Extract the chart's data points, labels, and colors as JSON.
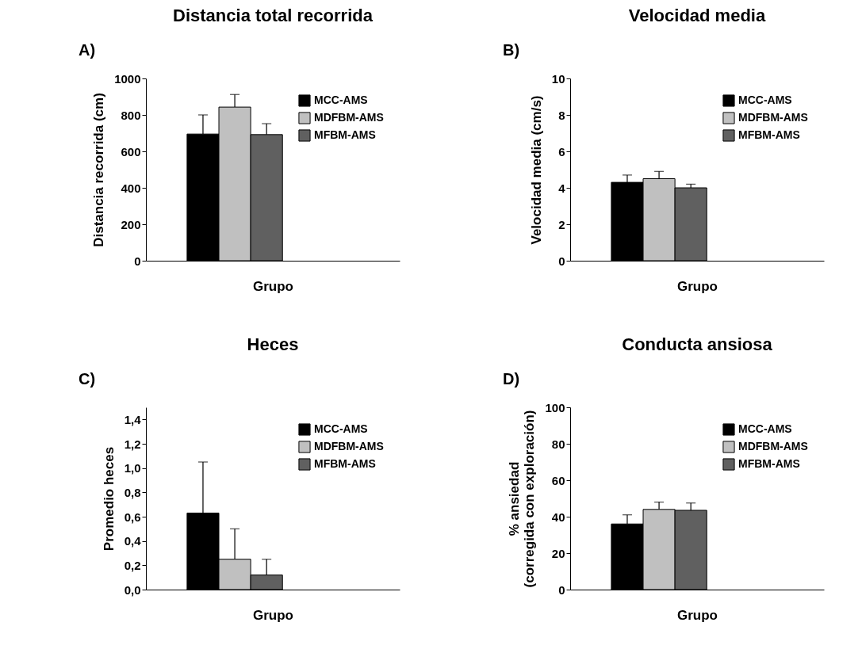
{
  "chart_data": [
    {
      "type": "bar",
      "title": "Distancia total recorrida",
      "annotations": [
        "A)"
      ],
      "xlabel": "Grupo",
      "ylabel": "Distancia recorrida (cm)",
      "categories": [
        null
      ],
      "series": [
        {
          "name": "MCC-AMS",
          "color": "#000000",
          "values": [
            695
          ],
          "errors": [
            [
              695,
              800
            ]
          ]
        },
        {
          "name": "MDFBM-AMS",
          "color": "#c0c0c0",
          "values": [
            843
          ],
          "errors": [
            [
              843,
              912
            ]
          ]
        },
        {
          "name": "MFBM-AMS",
          "color": "#606060",
          "values": [
            692
          ],
          "errors": [
            [
              692,
              752
            ]
          ]
        }
      ],
      "ylim": [
        0,
        1000
      ],
      "yticks": [
        0,
        200,
        400,
        600,
        800,
        1000
      ],
      "legend": "top right"
    },
    {
      "type": "bar",
      "title": "Velocidad media",
      "annotations": [
        "B)"
      ],
      "xlabel": "Grupo",
      "ylabel": "Velocidad media (cm/s)",
      "categories": [
        null
      ],
      "series": [
        {
          "name": "MCC-AMS",
          "color": "#000000",
          "values": [
            4.3
          ],
          "errors": [
            [
              4.3,
              4.7
            ]
          ]
        },
        {
          "name": "MDFBM-AMS",
          "color": "#c0c0c0",
          "values": [
            4.5
          ],
          "errors": [
            [
              4.5,
              4.9
            ]
          ]
        },
        {
          "name": "MFBM-AMS",
          "color": "#606060",
          "values": [
            4.0
          ],
          "errors": [
            [
              4.0,
              4.2
            ]
          ]
        }
      ],
      "ylim": [
        0,
        10
      ],
      "yticks": [
        0,
        2,
        4,
        6,
        8,
        10
      ],
      "legend": "top right"
    },
    {
      "type": "bar",
      "title": "Heces",
      "annotations": [
        "C)"
      ],
      "xlabel": "Grupo",
      "ylabel": "Promedio heces",
      "categories": [
        null
      ],
      "series": [
        {
          "name": "MCC-AMS",
          "color": "#000000",
          "values": [
            0.63
          ],
          "errors": [
            [
              0.63,
              1.05
            ]
          ]
        },
        {
          "name": "MDFBM-AMS",
          "color": "#c0c0c0",
          "values": [
            0.25
          ],
          "errors": [
            [
              0.25,
              0.5
            ]
          ]
        },
        {
          "name": "MFBM-AMS",
          "color": "#606060",
          "values": [
            0.12
          ],
          "errors": [
            [
              0.12,
              0.25
            ]
          ]
        }
      ],
      "ylim": [
        0,
        1.5
      ],
      "yticks": [
        {
          "value": 0,
          "label": "0,0"
        },
        {
          "value": 0.2,
          "label": "0,2"
        },
        {
          "value": 0.4,
          "label": "0,4"
        },
        {
          "value": 0.6,
          "label": "0,6"
        },
        {
          "value": 0.8,
          "label": "0,8"
        },
        {
          "value": 1,
          "label": "1,0"
        },
        {
          "value": 1.2,
          "label": "1,2"
        },
        {
          "value": 1.4,
          "label": "1,4"
        }
      ],
      "legend": "top right"
    },
    {
      "type": "bar",
      "title": "Conducta ansiosa",
      "annotations": [
        "D)"
      ],
      "xlabel": "Grupo",
      "ylabel": "% ansiedad\n(corregida con exploración)",
      "categories": [
        null
      ],
      "series": [
        {
          "name": "MCC-AMS",
          "color": "#000000",
          "values": [
            36
          ],
          "errors": [
            [
              36,
              41
            ]
          ]
        },
        {
          "name": "MDFBM-AMS",
          "color": "#c0c0c0",
          "values": [
            44
          ],
          "errors": [
            [
              44,
              48
            ]
          ]
        },
        {
          "name": "MFBM-AMS",
          "color": "#606060",
          "values": [
            43.5
          ],
          "errors": [
            [
              43.5,
              47.5
            ]
          ]
        }
      ],
      "ylim": [
        0,
        100
      ],
      "yticks": [
        0,
        20,
        40,
        60,
        80,
        100
      ],
      "legend": "top right"
    }
  ]
}
